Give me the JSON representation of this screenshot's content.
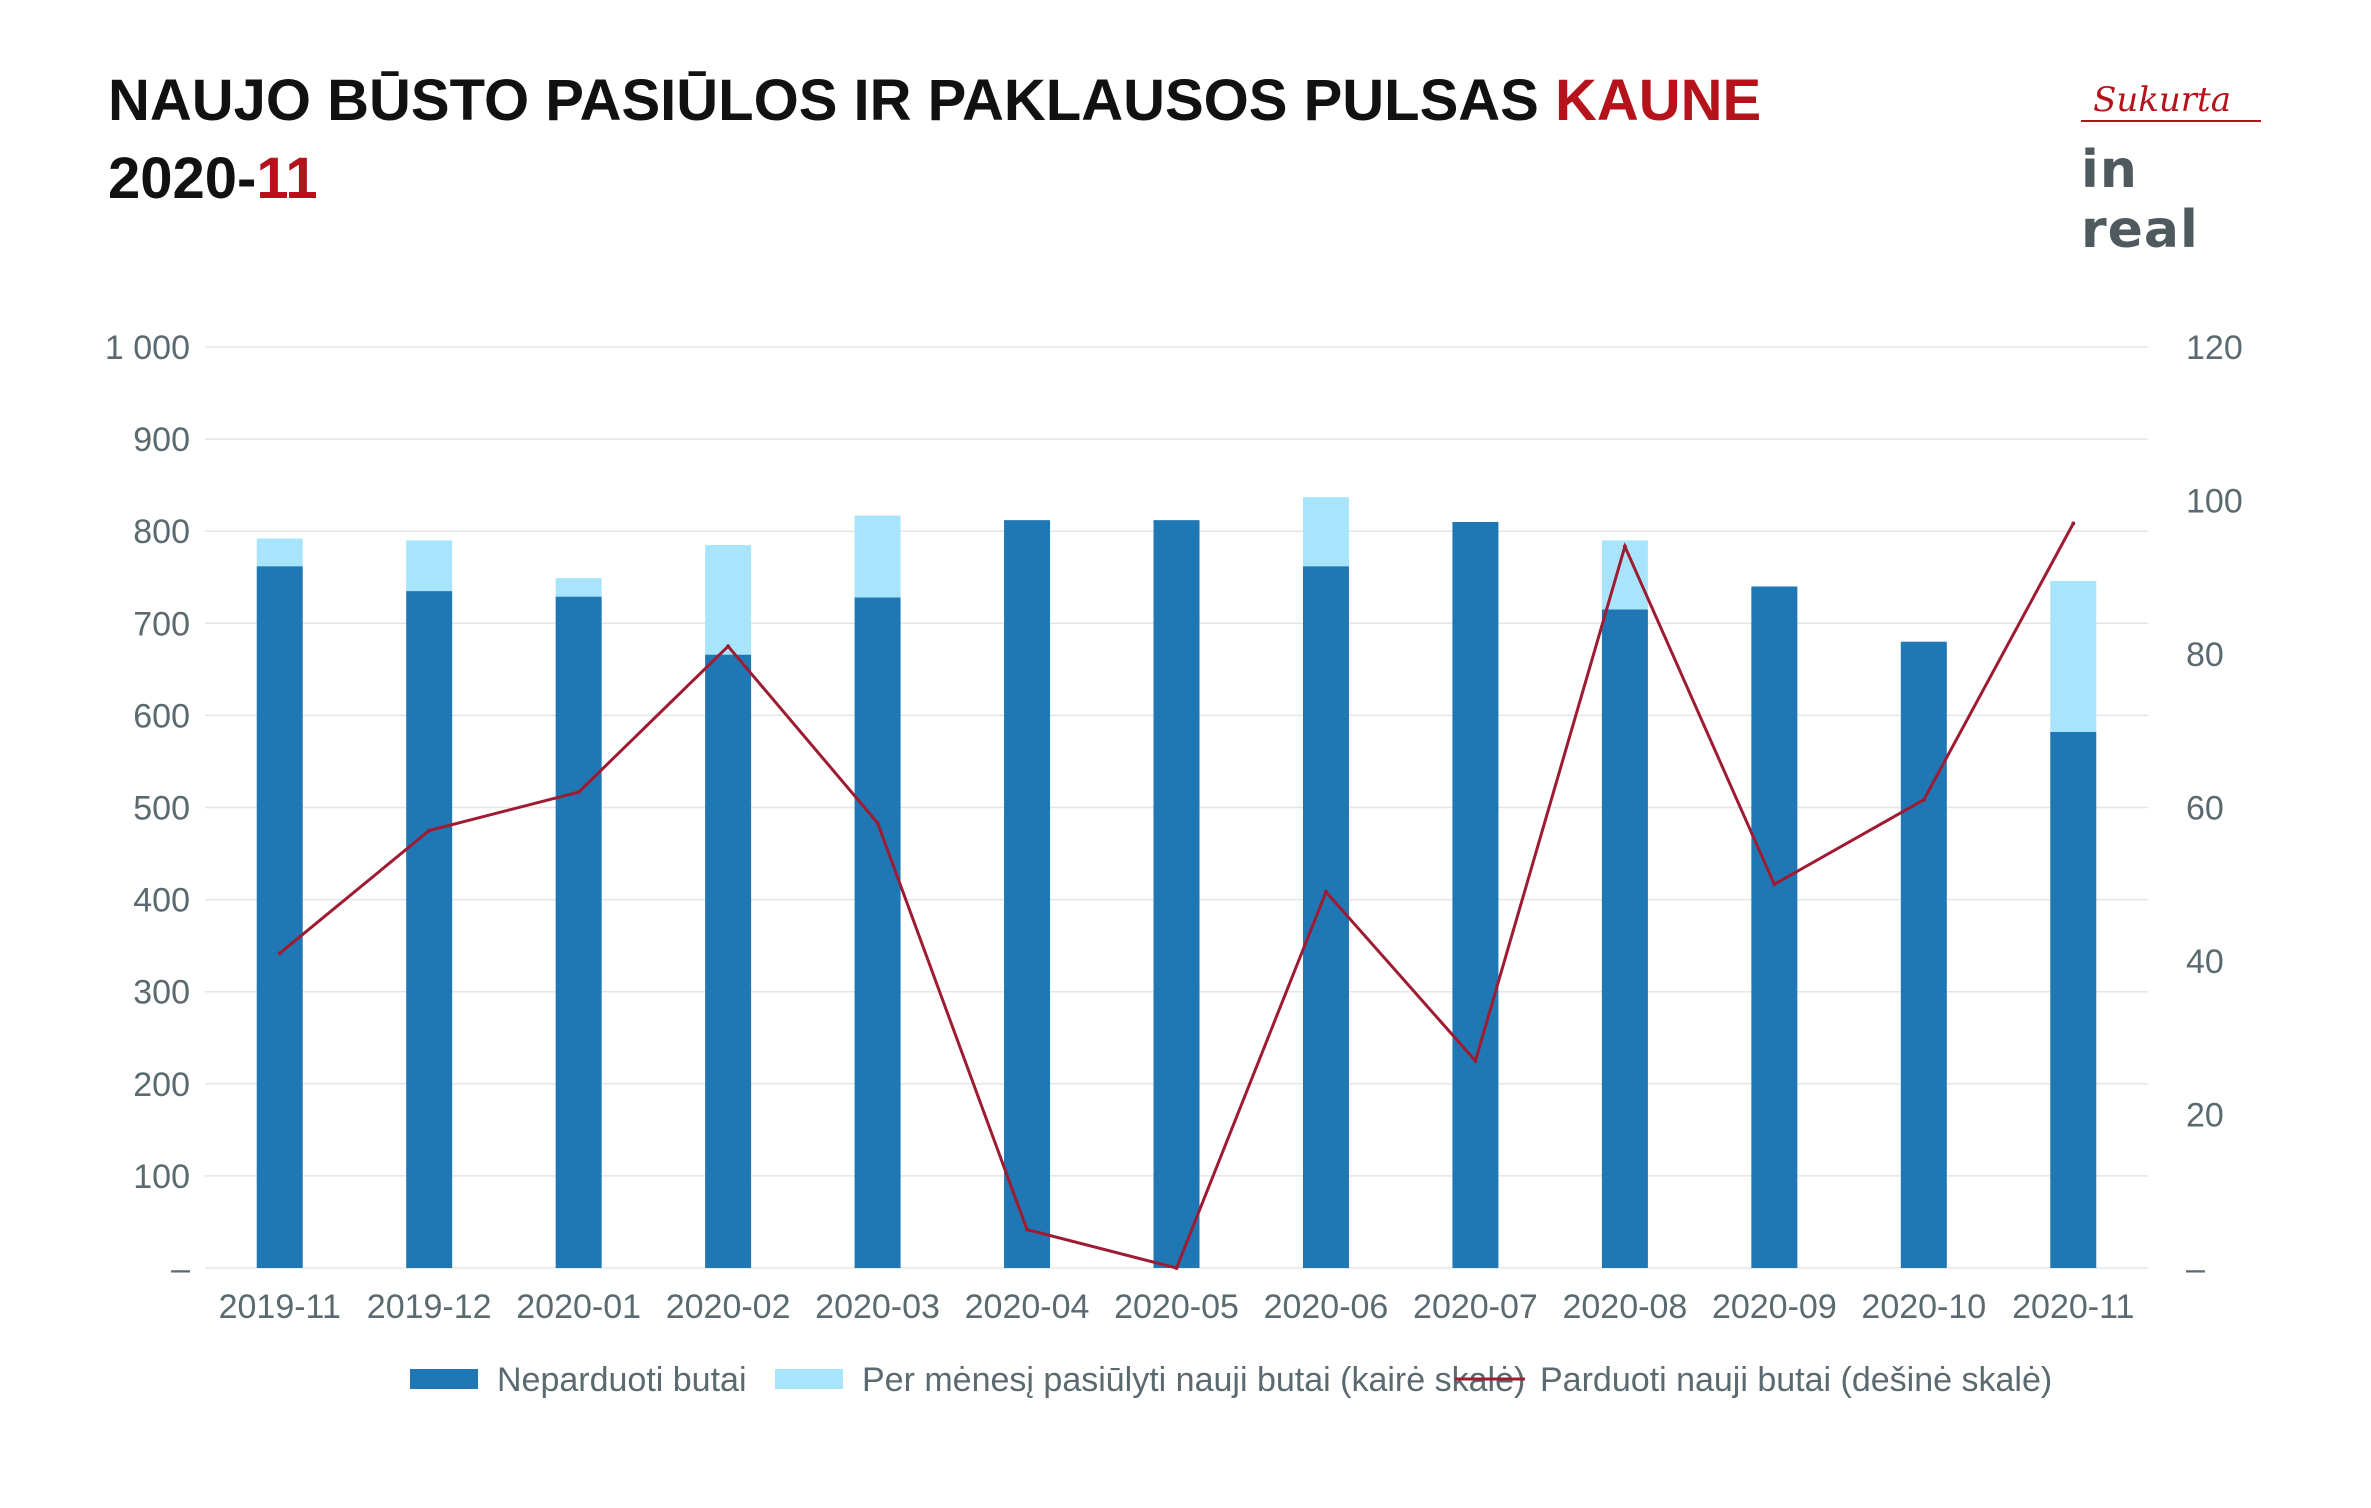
{
  "header": {
    "title_prefix": "NAUJO BŪSTO PASIŪLOS IR PAKLAUSOS PULSAS ",
    "title_highlight": "KAUNE",
    "date_prefix": "2020-",
    "date_highlight": "11"
  },
  "logo": {
    "tagline": "Sukurta",
    "brand": "in real"
  },
  "colors": {
    "dark_bar": "#1f77b4",
    "light_bar": "#a8e4fc",
    "line": "#9e1b32",
    "accent": "#b5121b"
  },
  "chart_data": {
    "type": "bar",
    "categories": [
      "2019-11",
      "2019-12",
      "2020-01",
      "2020-02",
      "2020-03",
      "2020-04",
      "2020-05",
      "2020-06",
      "2020-07",
      "2020-08",
      "2020-09",
      "2020-10",
      "2020-11"
    ],
    "series": [
      {
        "name": "Neparduoti butai",
        "type": "bar",
        "axis": "left",
        "stack": "total",
        "values": [
          762,
          735,
          729,
          666,
          728,
          812,
          812,
          762,
          810,
          715,
          740,
          680,
          582
        ]
      },
      {
        "name": "Per mėnesį pasiūlyti nauji butai (kairė skalė)",
        "type": "bar",
        "axis": "left",
        "stack": "total",
        "values": [
          30,
          55,
          20,
          119,
          89,
          0,
          0,
          75,
          0,
          75,
          0,
          0,
          164
        ]
      },
      {
        "name": "Parduoti nauji butai (dešinė skalė)",
        "type": "line",
        "axis": "right",
        "values": [
          41,
          57,
          62,
          81,
          58,
          5,
          0,
          49,
          27,
          94,
          50,
          61,
          97
        ]
      }
    ],
    "left_axis": {
      "min": 0,
      "max": 1000,
      "step": 100,
      "tick_labels": [
        "–",
        "100",
        "200",
        "300",
        "400",
        "500",
        "600",
        "700",
        "800",
        "900",
        "1 000"
      ]
    },
    "right_axis": {
      "min": 0,
      "max": 120,
      "step": 20,
      "tick_labels": [
        "–",
        "20",
        "40",
        "60",
        "80",
        "100",
        "120"
      ]
    },
    "grid": true,
    "legend_position": "bottom"
  }
}
